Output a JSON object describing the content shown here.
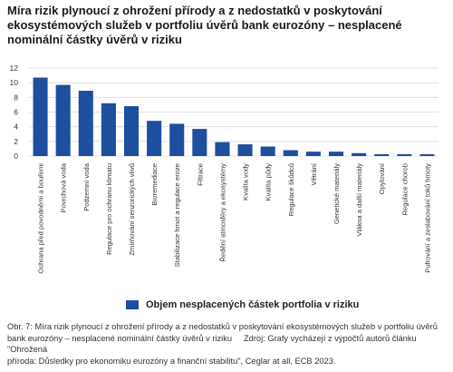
{
  "title": "Míra rizik plynoucí z ohrožení přírody a z nedostatků v poskytování ekosystémových služeb v portfoliu úvěrů bank eurozóny – nesplacené nominální částky úvěrů v riziku",
  "colors": {
    "bar": "#1e4e9e",
    "grid": "#d9d9d9",
    "axis_text": "#333333"
  },
  "chart_data": {
    "type": "bar",
    "categories": [
      "Ochrana před povodněmi a bouřemi",
      "Povrchová voda",
      "Podzemní voda",
      "Regulace pro ochranu klimatu",
      "Zmírňování senzorických vlivů",
      "Bioremediace",
      "Stabilizace hmot a regulace eroze",
      "Filtrace",
      "Ředění atmosféry a ekosystémy",
      "Kvalita vody",
      "Kvalita půdy",
      "Regulace škůdců",
      "Větrání",
      "Genetické materiály",
      "Vlákna a další materiály",
      "Opylování",
      "Regulace chorob",
      "Pufrování a zeslabování toků hmoty"
    ],
    "series": [
      {
        "name": "Objem nesplacených částek portfolia v riziku",
        "values": [
          10.7,
          9.7,
          8.9,
          7.2,
          6.8,
          4.8,
          4.4,
          3.7,
          1.9,
          1.6,
          1.3,
          0.8,
          0.6,
          0.6,
          0.4,
          0.25,
          0.25,
          0.25
        ]
      }
    ],
    "y_ticks": [
      "0",
      "2",
      "4",
      "6",
      "8",
      "10",
      "12"
    ],
    "ylim": [
      0,
      12
    ],
    "grid": true,
    "legend_position": "bottom"
  },
  "legend": {
    "label": "Objem nesplacených částek portfolia v riziku"
  },
  "caption": {
    "line1": "Obr. 7: Míra rizik plynoucí z ohrožení přírody a z nedostatků v poskytování ekosystémových služeb v portfoliu úvěrů",
    "line2a": "bank eurozóny – nesplacené nominální částky úvěrů v riziku",
    "line2b": "Zdroj: Grafy vycházejí z výpočtů autorů článku \"Ohrožená",
    "line3": "příroda: Důsledky pro ekonomiku eurozóny a finanční stabilitu\", Ceglar at all, ECB 2023."
  }
}
